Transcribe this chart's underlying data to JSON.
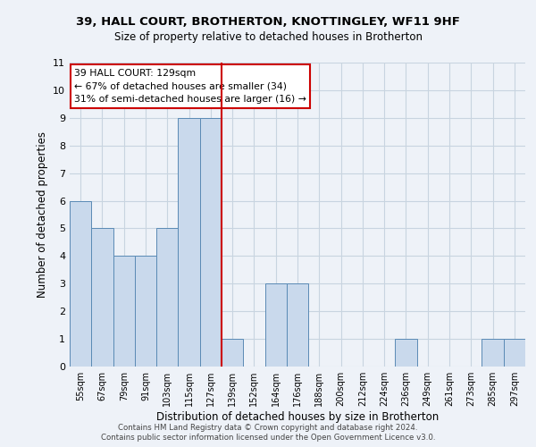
{
  "title1": "39, HALL COURT, BROTHERTON, KNOTTINGLEY, WF11 9HF",
  "title2": "Size of property relative to detached houses in Brotherton",
  "xlabel": "Distribution of detached houses by size in Brotherton",
  "ylabel": "Number of detached properties",
  "footer1": "Contains HM Land Registry data © Crown copyright and database right 2024.",
  "footer2": "Contains public sector information licensed under the Open Government Licence v3.0.",
  "annotation_line1": "39 HALL COURT: 129sqm",
  "annotation_line2": "← 67% of detached houses are smaller (34)",
  "annotation_line3": "31% of semi-detached houses are larger (16) →",
  "bar_color": "#c9d9ec",
  "bar_edge_color": "#5a8ab5",
  "grid_color": "#c8d4e0",
  "ref_line_color": "#cc0000",
  "ref_line_x": 6.5,
  "categories": [
    "55sqm",
    "67sqm",
    "79sqm",
    "91sqm",
    "103sqm",
    "115sqm",
    "127sqm",
    "139sqm",
    "152sqm",
    "164sqm",
    "176sqm",
    "188sqm",
    "200sqm",
    "212sqm",
    "224sqm",
    "236sqm",
    "249sqm",
    "261sqm",
    "273sqm",
    "285sqm",
    "297sqm"
  ],
  "values": [
    6,
    5,
    4,
    4,
    5,
    9,
    9,
    1,
    0,
    3,
    3,
    0,
    0,
    0,
    0,
    1,
    0,
    0,
    0,
    1,
    1
  ],
  "ylim": [
    0,
    11
  ],
  "yticks": [
    0,
    1,
    2,
    3,
    4,
    5,
    6,
    7,
    8,
    9,
    10,
    11
  ],
  "background_color": "#eef2f8"
}
